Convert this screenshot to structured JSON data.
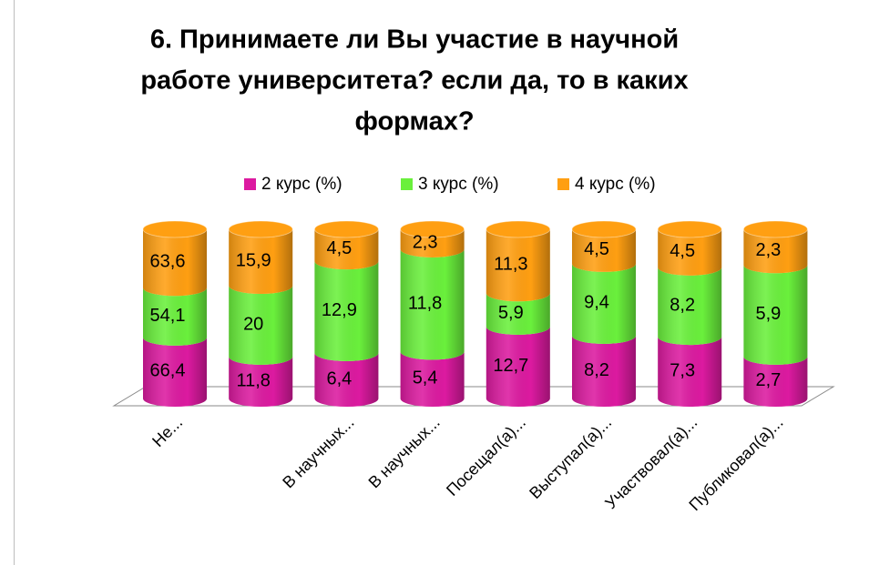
{
  "chart_data": {
    "type": "bar",
    "stacked": "percent",
    "title": [
      "6. Принимаете ли Вы участие в научной",
      "работе университета? если да, то в каких",
      "формах?"
    ],
    "categories": [
      "Не...",
      null,
      "В научных...",
      "В научных...",
      "Посещал(а)...",
      "Выступал(а)...",
      "Участвовал(а)...",
      "Публиковал(а)..."
    ],
    "series": [
      {
        "name": "2 курс (%)",
        "color": "#dc1aa0",
        "values": [
          66.4,
          11.8,
          6.4,
          5.4,
          12.7,
          8.2,
          7.3,
          2.7
        ],
        "value_labels": [
          "66,4",
          "11,8",
          "6,4",
          "5,4",
          "12,7",
          "8,2",
          "7,3",
          "2,7"
        ]
      },
      {
        "name": "3 курс (%)",
        "color": "#6af03c",
        "values": [
          54.1,
          20,
          12.9,
          11.8,
          5.9,
          9.4,
          8.2,
          5.9
        ],
        "value_labels": [
          "54,1",
          "20",
          "12,9",
          "11,8",
          "5,9",
          "9,4",
          "8,2",
          "5,9"
        ]
      },
      {
        "name": "4 курс (%)",
        "color": "#ff9f12",
        "values": [
          63.6,
          15.9,
          4.5,
          2.3,
          11.3,
          4.5,
          4.5,
          2.3
        ],
        "value_labels": [
          "63,6",
          "15,9",
          "4,5",
          "2,3",
          "11,3",
          "4,5",
          "4,5",
          "2,3"
        ]
      }
    ],
    "legend": "top"
  }
}
